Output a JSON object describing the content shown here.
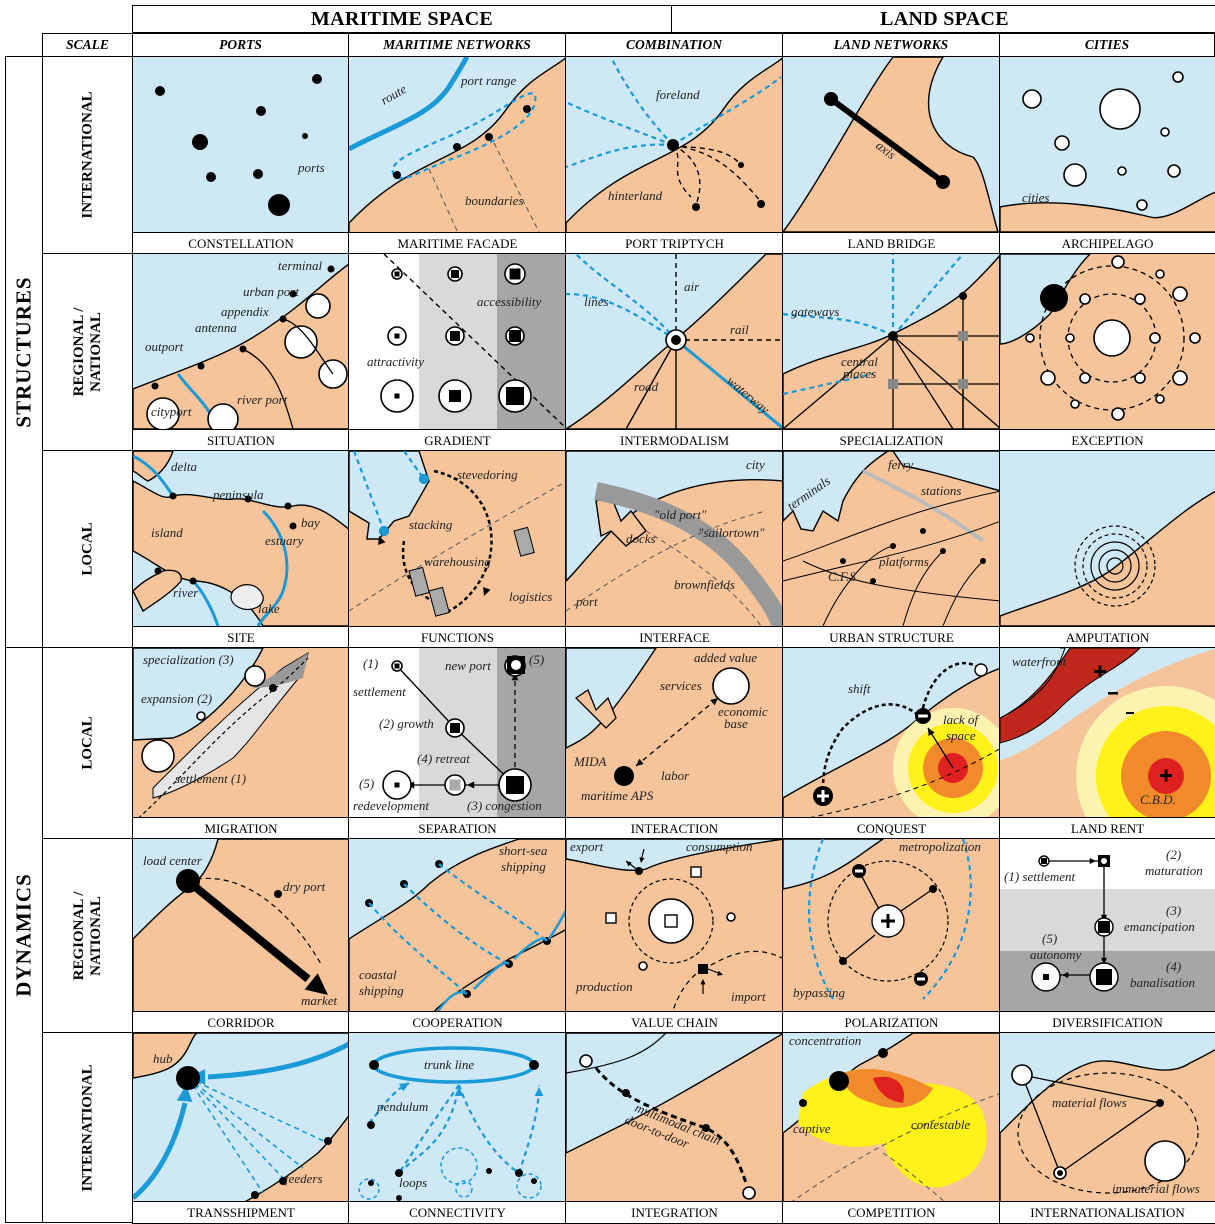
{
  "header": {
    "maritime": "MARITIME SPACE",
    "land": "LAND SPACE"
  },
  "columns": {
    "scale": "SCALE",
    "ports": "PORTS",
    "maritime_networks": "MARITIME NETWORKS",
    "combination": "COMBINATION",
    "land_networks": "LAND NETWORKS",
    "cities": "CITIES"
  },
  "sections": {
    "structures": "STRUCTURES",
    "dynamics": "DYNAMICS"
  },
  "scales": {
    "international": "INTERNATIONAL",
    "regional": "REGIONAL /\nNATIONAL",
    "local": "LOCAL"
  },
  "colors": {
    "sea": "#cfe8f6",
    "land": "#f6c49a",
    "route": "#1a9ad6",
    "grey_light": "#d9d9d9",
    "grey_dark": "#a6a6a6",
    "rent_red": "#e02020",
    "rent_orange": "#f08a2a",
    "rent_yellow": "#fff21a",
    "rent_pale": "#fdf3b0",
    "waterfront": "#c0281e"
  },
  "cells": {
    "r0c0": {
      "caption": "CONSTELLATION",
      "labels": [
        "ports"
      ]
    },
    "r0c1": {
      "caption": "MARITIME FACADE",
      "labels": [
        "route",
        "port range",
        "boundaries"
      ]
    },
    "r0c2": {
      "caption": "PORT TRIPTYCH",
      "labels": [
        "foreland",
        "hinterland"
      ]
    },
    "r0c3": {
      "caption": "LAND BRIDGE",
      "labels": [
        "axis"
      ]
    },
    "r0c4": {
      "caption": "ARCHIPELAGO",
      "labels": [
        "cities"
      ]
    },
    "r1c0": {
      "caption": "SITUATION",
      "labels": [
        "terminal",
        "urban port",
        "appendix",
        "antenna",
        "outport",
        "river port",
        "cityport"
      ]
    },
    "r1c1": {
      "caption": "GRADIENT",
      "labels": [
        "accessibility",
        "attractivity"
      ]
    },
    "r1c2": {
      "caption": "INTERMODALISM",
      "labels": [
        "air",
        "lines",
        "rail",
        "road",
        "waterway"
      ]
    },
    "r1c3": {
      "caption": "SPECIALIZATION",
      "labels": [
        "gateways",
        "central",
        "places"
      ]
    },
    "r1c4": {
      "caption": "EXCEPTION",
      "labels": []
    },
    "r2c0": {
      "caption": "SITE",
      "labels": [
        "delta",
        "peninsula",
        "bay",
        "island",
        "estuary",
        "river",
        "lake"
      ]
    },
    "r2c1": {
      "caption": "FUNCTIONS",
      "labels": [
        "stevedoring",
        "stacking",
        "warehousing",
        "logistics"
      ]
    },
    "r2c2": {
      "caption": "INTERFACE",
      "labels": [
        "city",
        "\"old port\"",
        "docks",
        "\"sailortown\"",
        "brownfields",
        "port"
      ]
    },
    "r2c3": {
      "caption": "URBAN STRUCTURE",
      "labels": [
        "ferry",
        "terminals",
        "stations",
        "platforms",
        "C.F.S."
      ]
    },
    "r2c4": {
      "caption": "AMPUTATION",
      "labels": []
    },
    "r3c0": {
      "caption": "MIGRATION",
      "labels": [
        "specialization (3)",
        "expansion (2)",
        "settlement (1)"
      ]
    },
    "r3c1": {
      "caption": "SEPARATION",
      "labels": [
        "(1)",
        "settlement",
        "new port",
        "(5)",
        "(2) growth",
        "(4) retreat",
        "(5)",
        "redevelopment",
        "(3) congestion"
      ]
    },
    "r3c2": {
      "caption": "INTERACTION",
      "labels": [
        "added value",
        "services",
        "economic",
        "base",
        "MIDA",
        "labor",
        "maritime APS"
      ]
    },
    "r3c3": {
      "caption": "CONQUEST",
      "labels": [
        "shift",
        "lack of",
        "space"
      ]
    },
    "r3c4": {
      "caption": "LAND RENT",
      "labels": [
        "waterfront",
        "C.B.D."
      ]
    },
    "r4c0": {
      "caption": "CORRIDOR",
      "labels": [
        "load center",
        "dry port",
        "market"
      ]
    },
    "r4c1": {
      "caption": "COOPERATION",
      "labels": [
        "short-sea",
        "shipping",
        "coastal",
        "shipping"
      ]
    },
    "r4c2": {
      "caption": "VALUE CHAIN",
      "labels": [
        "export",
        "consumption",
        "production",
        "import"
      ]
    },
    "r4c3": {
      "caption": "POLARIZATION",
      "labels": [
        "metropolization",
        "bypassing"
      ]
    },
    "r4c4": {
      "caption": "DIVERSIFICATION",
      "labels": [
        "(1) settlement",
        "(2)",
        "maturation",
        "(3)",
        "emancipation",
        "(5)",
        "autonomy",
        "(4)",
        "banalisation"
      ]
    },
    "r5c0": {
      "caption": "TRANSSHIPMENT",
      "labels": [
        "hub",
        "feeders"
      ]
    },
    "r5c1": {
      "caption": "CONNECTIVITY",
      "labels": [
        "trunk line",
        "pendulum",
        "loops"
      ]
    },
    "r5c2": {
      "caption": "INTEGRATION",
      "labels": [
        "multimodal chain",
        "door-to-door"
      ]
    },
    "r5c3": {
      "caption": "COMPETITION",
      "labels": [
        "concentration",
        "captive",
        "contestable"
      ]
    },
    "r5c4": {
      "caption": "INTERNATIONALISATION",
      "labels": [
        "material flows",
        "immaterial flows"
      ]
    }
  }
}
